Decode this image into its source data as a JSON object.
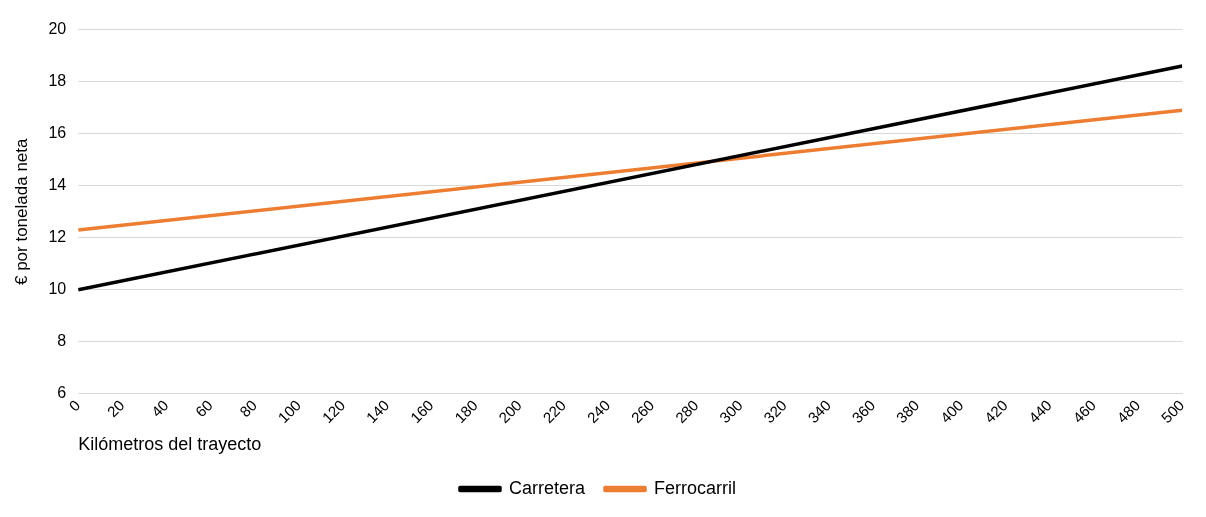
{
  "chart_data": {
    "type": "line",
    "xlabel": "Kilómetros del trayecto",
    "ylabel": "€ por tonelada neta",
    "x": [
      0,
      500
    ],
    "series": [
      {
        "name": "Carretera",
        "color": "#000000",
        "values": [
          10,
          18.6
        ]
      },
      {
        "name": "Ferrocarril",
        "color": "#ed7d31",
        "values": [
          12.3,
          16.9
        ]
      }
    ],
    "xlim": [
      0,
      500
    ],
    "xticks": [
      0,
      20,
      40,
      60,
      80,
      100,
      120,
      140,
      160,
      180,
      200,
      220,
      240,
      260,
      280,
      300,
      320,
      340,
      360,
      380,
      400,
      420,
      440,
      460,
      480,
      500
    ],
    "ylim": [
      6,
      20
    ],
    "yticks": [
      6,
      8,
      10,
      12,
      14,
      16,
      18,
      20
    ],
    "grid": "y",
    "legend": "bottom",
    "marker": "none",
    "line_style": "solid"
  }
}
